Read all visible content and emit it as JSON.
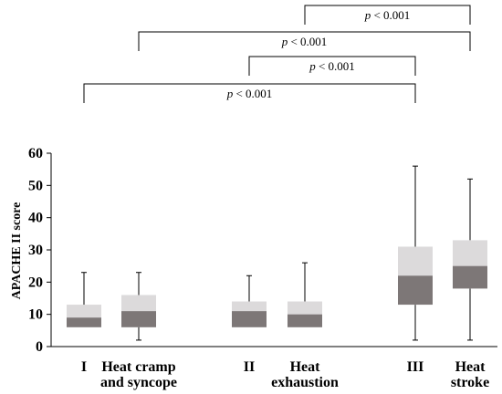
{
  "chart_data": {
    "type": "box",
    "ylabel": "APACHE II score",
    "ylim": [
      0,
      60
    ],
    "yticks": [
      0,
      10,
      20,
      30,
      40,
      50,
      60
    ],
    "grid": false,
    "colors": {
      "upper": "#dcdadb",
      "lower": "#7d7777",
      "line": "#000000"
    },
    "categories": [
      {
        "label_lines": [
          "I"
        ],
        "whisker_low": 6,
        "q1": 6,
        "median": 9,
        "q3": 13,
        "whisker_high": 23
      },
      {
        "label_lines": [
          "Heat cramp",
          "and syncope"
        ],
        "whisker_low": 2,
        "q1": 6,
        "median": 11,
        "q3": 16,
        "whisker_high": 23
      },
      {
        "label_lines": [
          "II"
        ],
        "whisker_low": 6,
        "q1": 6,
        "median": 11,
        "q3": 14,
        "whisker_high": 22
      },
      {
        "label_lines": [
          "Heat",
          "exhaustion"
        ],
        "whisker_low": 6,
        "q1": 6,
        "median": 10,
        "q3": 14,
        "whisker_high": 26
      },
      {
        "label_lines": [
          "III"
        ],
        "whisker_low": 2,
        "q1": 13,
        "median": 22,
        "q3": 31,
        "whisker_high": 56
      },
      {
        "label_lines": [
          "Heat",
          "stroke"
        ],
        "whisker_low": 2,
        "q1": 18,
        "median": 25,
        "q3": 33,
        "whisker_high": 52
      }
    ],
    "annotations": [
      {
        "from": 3,
        "to": 5,
        "prefix": "p",
        "text": " < 0.001"
      },
      {
        "from": 1,
        "to": 5,
        "prefix": "p",
        "text": " < 0.001"
      },
      {
        "from": 2,
        "to": 4,
        "prefix": "p",
        "text": " < 0.001"
      },
      {
        "from": 0,
        "to": 4,
        "prefix": "p",
        "text": " < 0.001"
      }
    ]
  }
}
